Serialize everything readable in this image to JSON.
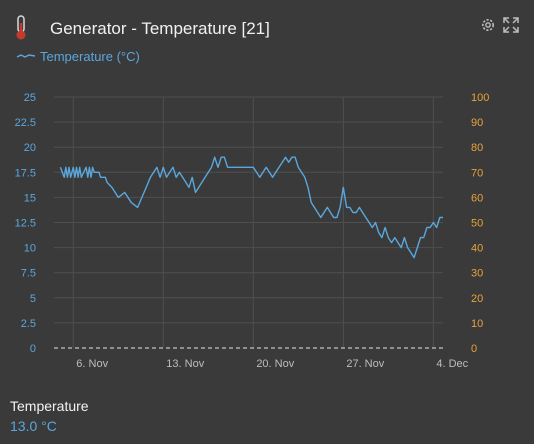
{
  "header": {
    "title": "Generator - Temperature [21]",
    "icons": [
      "thermometer-icon",
      "gear-icon",
      "expand-icon"
    ],
    "legend_label": "Temperature (°C)"
  },
  "chart_data": {
    "type": "line",
    "title": "",
    "xlabel": "",
    "ylabel": "",
    "x_tick_labels": [
      "6. Nov",
      "13. Nov",
      "20. Nov",
      "27. Nov",
      "4. Dec"
    ],
    "left_axis": {
      "min": 0,
      "max": 25,
      "ticks": [
        "0",
        "2.5",
        "5",
        "7.5",
        "10",
        "12.5",
        "15",
        "17.5",
        "20",
        "22.5",
        "25"
      ]
    },
    "right_axis": {
      "min": 0,
      "max": 100,
      "ticks": [
        "0",
        "10",
        "20",
        "30",
        "40",
        "50",
        "60",
        "70",
        "80",
        "90",
        "100"
      ]
    },
    "grid": true,
    "series": [
      {
        "name": "Temperature (°C)",
        "color": "#5aa7de",
        "axis": "left",
        "x": [
          "2023-11-05T00:00",
          "2023-11-05T07:00",
          "2023-11-05T10:00",
          "2023-11-05T13:00",
          "2023-11-05T16:00",
          "2023-11-05T19:00",
          "2023-11-06T00:00",
          "2023-11-06T03:00",
          "2023-11-06T06:00",
          "2023-11-06T09:00",
          "2023-11-06T12:00",
          "2023-11-06T15:00",
          "2023-11-07T00:00",
          "2023-11-07T03:00",
          "2023-11-07T06:00",
          "2023-11-07T09:00",
          "2023-11-07T12:00",
          "2023-11-07T15:00",
          "2023-11-08T00:00",
          "2023-11-08T03:00",
          "2023-11-08T06:00",
          "2023-11-08T09:00",
          "2023-11-08T12:00",
          "2023-11-08T15:00",
          "2023-11-09T00:00",
          "2023-11-09T12:00",
          "2023-11-10T00:00",
          "2023-11-10T12:00",
          "2023-11-11T00:00",
          "2023-11-11T08:00",
          "2023-11-11T16:00",
          "2023-11-12T00:00",
          "2023-11-12T06:00",
          "2023-11-12T12:00",
          "2023-11-12T18:00",
          "2023-11-13T00:00",
          "2023-11-13T06:00",
          "2023-11-13T12:00",
          "2023-11-13T18:00",
          "2023-11-14T00:00",
          "2023-11-14T06:00",
          "2023-11-14T12:00",
          "2023-11-14T18:00",
          "2023-11-15T00:00",
          "2023-11-15T06:00",
          "2023-11-15T12:00",
          "2023-11-15T18:00",
          "2023-11-16T00:00",
          "2023-11-16T06:00",
          "2023-11-16T12:00",
          "2023-11-16T18:00",
          "2023-11-17T00:00",
          "2023-11-17T06:00",
          "2023-11-17T12:00",
          "2023-11-17T18:00",
          "2023-11-18T00:00",
          "2023-11-18T06:00",
          "2023-11-18T12:00",
          "2023-11-18T18:00",
          "2023-11-19T00:00",
          "2023-11-19T06:00",
          "2023-11-19T12:00",
          "2023-11-19T18:00",
          "2023-11-20T00:00",
          "2023-11-20T12:00",
          "2023-11-21T00:00",
          "2023-11-21T12:00",
          "2023-11-22T00:00",
          "2023-11-22T06:00",
          "2023-11-22T12:00",
          "2023-11-22T18:00",
          "2023-11-23T00:00",
          "2023-11-23T06:00",
          "2023-11-23T12:00",
          "2023-11-23T18:00",
          "2023-11-24T00:00",
          "2023-11-24T06:00",
          "2023-11-24T12:00",
          "2023-11-24T18:00",
          "2023-11-25T00:00",
          "2023-11-25T06:00",
          "2023-11-25T12:00",
          "2023-11-25T18:00",
          "2023-11-26T00:00",
          "2023-11-26T06:00",
          "2023-11-26T12:00",
          "2023-11-26T18:00",
          "2023-11-27T00:00",
          "2023-11-27T06:00",
          "2023-11-27T12:00",
          "2023-11-27T18:00",
          "2023-11-28T00:00",
          "2023-11-28T06:00",
          "2023-11-28T12:00",
          "2023-11-28T18:00",
          "2023-11-29T00:00",
          "2023-11-29T06:00",
          "2023-11-29T12:00",
          "2023-11-29T18:00",
          "2023-11-30T00:00",
          "2023-11-30T06:00",
          "2023-11-30T12:00",
          "2023-11-30T18:00",
          "2023-12-01T00:00",
          "2023-12-01T06:00",
          "2023-12-01T12:00",
          "2023-12-01T18:00",
          "2023-12-02T00:00",
          "2023-12-02T06:00",
          "2023-12-02T12:00",
          "2023-12-02T18:00",
          "2023-12-03T00:00",
          "2023-12-03T06:00",
          "2023-12-03T12:00",
          "2023-12-03T18:00",
          "2023-12-04T00:00",
          "2023-12-04T06:00",
          "2023-12-04T12:00",
          "2023-12-04T18:00"
        ],
        "values": [
          18,
          17,
          18,
          17,
          18,
          17,
          18,
          17,
          18,
          17,
          18,
          17,
          18,
          17,
          18,
          17,
          18,
          17.5,
          17.5,
          17,
          17,
          17,
          17,
          16.5,
          16,
          15,
          15.5,
          14.5,
          14,
          15,
          16,
          17,
          17.5,
          18,
          17,
          18,
          17,
          17.5,
          18,
          17,
          17.5,
          17,
          16.5,
          16,
          17,
          15.5,
          16,
          16.5,
          17,
          17.5,
          18,
          19,
          18,
          19,
          19,
          18,
          18,
          18,
          18,
          18,
          18,
          18,
          18,
          18,
          17,
          18,
          17,
          18,
          18.5,
          19,
          18.5,
          19,
          19,
          18,
          17.5,
          17,
          16,
          14.5,
          14,
          13.5,
          13,
          13.5,
          14,
          13.5,
          13,
          13,
          14,
          16,
          14,
          14,
          13.5,
          13.5,
          14,
          13.5,
          13,
          12.5,
          12,
          12.5,
          11.5,
          11,
          12,
          11,
          10.5,
          11,
          10.5,
          10,
          11,
          10,
          9.5,
          9,
          10,
          11,
          11,
          12,
          12,
          12.5,
          12,
          13,
          13
        ]
      }
    ]
  },
  "footer": {
    "label": "Temperature",
    "value": "13.0 °C"
  }
}
